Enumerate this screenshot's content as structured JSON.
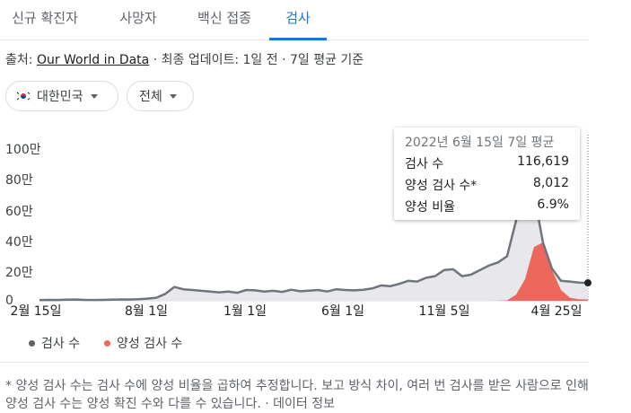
{
  "tabs": [
    {
      "label": "신규 확진자"
    },
    {
      "label": "사망자"
    },
    {
      "label": "백신 접종"
    },
    {
      "label": "검사"
    }
  ],
  "source": {
    "prefix": "출처:",
    "link": "Our World in Data",
    "suffix": "· 최종 업데이트: 1일 전 · 7일 평균 기준"
  },
  "filters": {
    "country": "대한민국",
    "scope": "전체"
  },
  "tooltip": {
    "date": "2022년 6월 15일 7일 평균",
    "rows": [
      {
        "label": "검사 수",
        "value": "116,619"
      },
      {
        "label": "양성 검사 수*",
        "value": "8,012"
      },
      {
        "label": "양성 비율",
        "value": "6.9%"
      }
    ]
  },
  "legend": [
    {
      "label": "검사 수",
      "color": "#5f6368"
    },
    {
      "label": "양성 검사 수",
      "color": "#ee675c"
    }
  ],
  "footnote": "* 양성 검사 수는 검사 수에 양성 비율을 곱하여 추정합니다. 보고 방식 차이, 여러 번 검사를 받은 사람으로 인해 양성 검사 수는 양성 확진 수와 다를 수 있습니다. · 데이터 정보",
  "chart_data": {
    "type": "area",
    "y_ticks": [
      "0",
      "20만",
      "40만",
      "60만",
      "80만",
      "100만"
    ],
    "ylim": [
      0,
      1000000
    ],
    "x_ticks": [
      "2월 15일",
      "8월 1일",
      "1월 1일",
      "6월 1일",
      "11월 5일",
      "4월 25일"
    ],
    "series": [
      {
        "name": "검사 수",
        "color": "#5f6368",
        "values": [
          4000,
          6000,
          5000,
          7000,
          8000,
          6000,
          5000,
          6000,
          7000,
          9000,
          8000,
          10000,
          14000,
          20000,
          45000,
          90000,
          75000,
          70000,
          65000,
          60000,
          55000,
          60000,
          52000,
          70000,
          68000,
          60000,
          65000,
          58000,
          72000,
          62000,
          66000,
          70000,
          60000,
          75000,
          70000,
          68000,
          72000,
          80000,
          100000,
          95000,
          110000,
          130000,
          125000,
          150000,
          160000,
          200000,
          205000,
          160000,
          170000,
          200000,
          230000,
          250000,
          290000,
          520000,
          830000,
          700000,
          380000,
          210000,
          130000,
          125000,
          118000,
          116619
        ]
      },
      {
        "name": "양성 검사 수",
        "color": "#ee675c",
        "values": [
          0,
          0,
          0,
          0,
          0,
          0,
          0,
          0,
          0,
          0,
          0,
          0,
          0,
          0,
          0,
          0,
          0,
          0,
          0,
          0,
          0,
          0,
          0,
          0,
          0,
          0,
          0,
          0,
          0,
          0,
          0,
          0,
          0,
          0,
          0,
          0,
          0,
          0,
          0,
          0,
          0,
          0,
          0,
          0,
          0,
          0,
          0,
          0,
          0,
          0,
          0,
          500,
          3000,
          40000,
          140000,
          350000,
          380000,
          200000,
          70000,
          20000,
          10000,
          8012
        ]
      }
    ]
  }
}
